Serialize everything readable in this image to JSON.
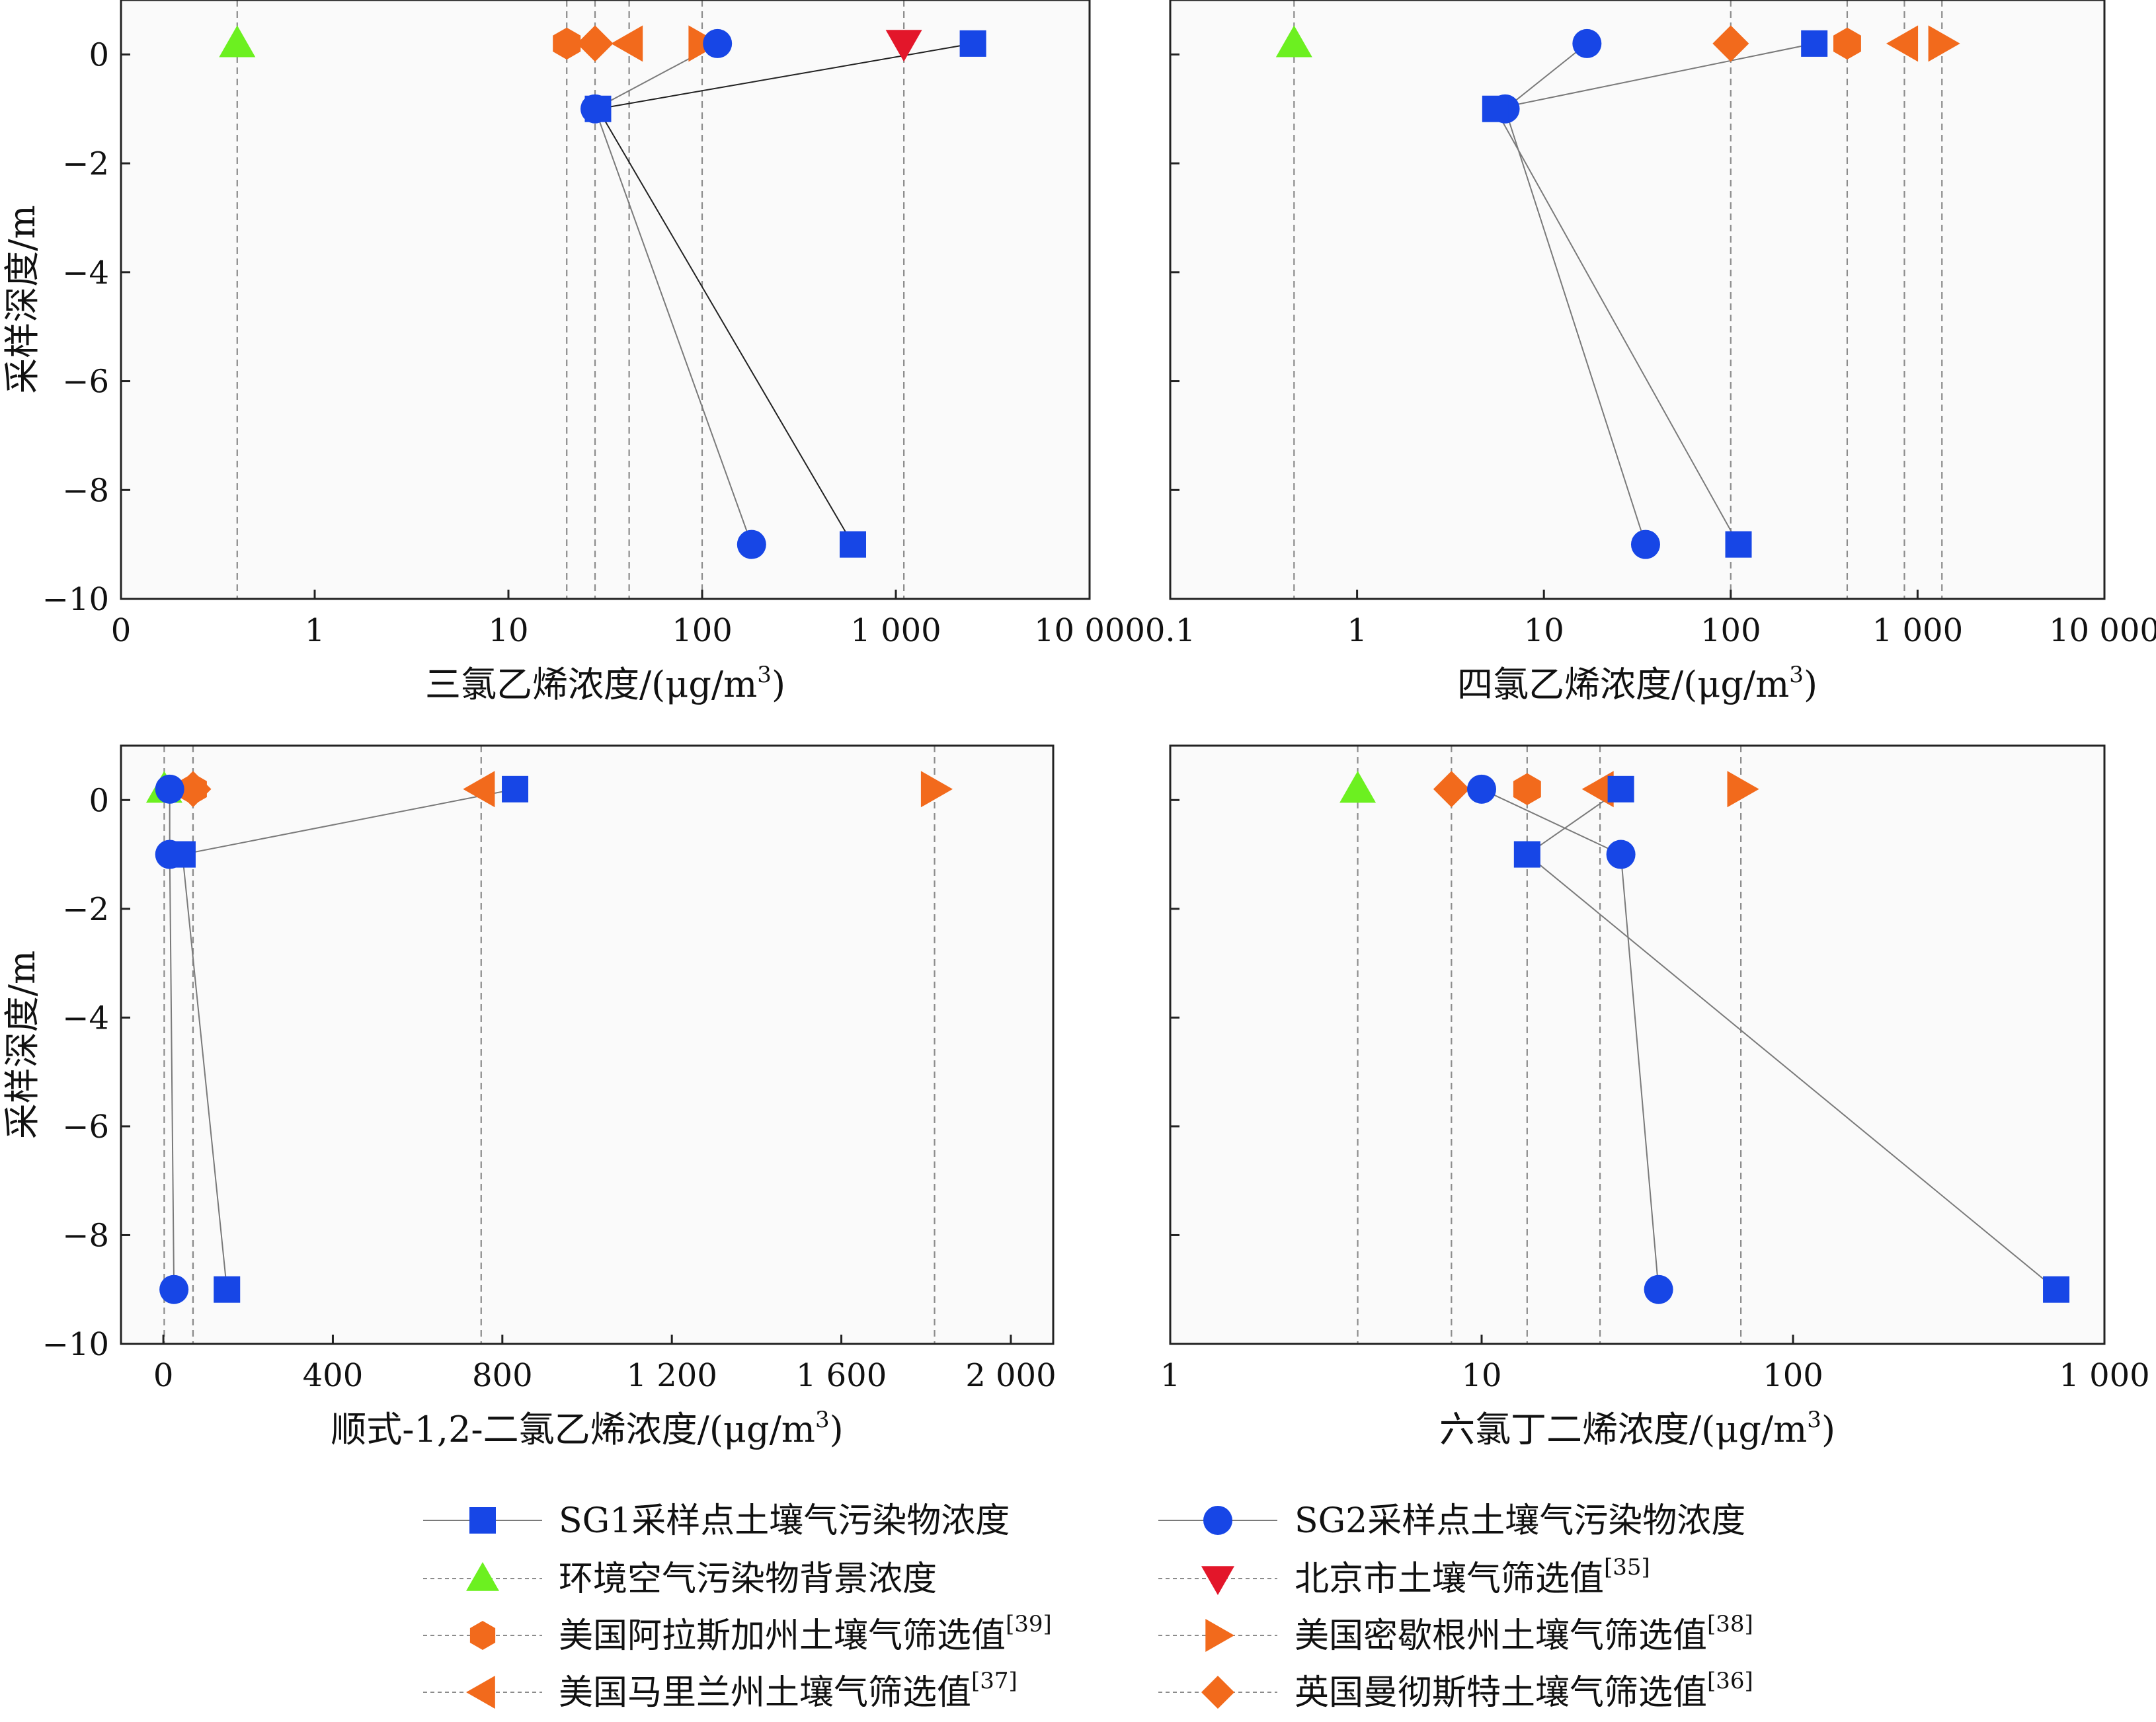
{
  "colors": {
    "plot_bg": "#fafafa",
    "blue": "#1746e6",
    "green": "#6cf020",
    "red": "#e3162a",
    "orange": "#f26a1c",
    "line_gray": "#7a7a7a",
    "ref_gray": "#8c8c8c"
  },
  "chart_data": [
    {
      "type": "scatter",
      "xscale": "symlog",
      "xlabel_main": "三氯乙烯浓度/(μg/m",
      "xlabel_sup": "3",
      "xlabel_end": ")",
      "ylabel": "采样深度/m",
      "xlim": [
        0,
        10000
      ],
      "ylim": [
        -10,
        1
      ],
      "xticks": [
        0,
        1,
        10,
        100,
        1000,
        10000
      ],
      "xticklabels": [
        "0",
        "1",
        "10",
        "100",
        "1 000",
        "10 000"
      ],
      "yticks": [
        0,
        -2,
        -4,
        -6,
        -8,
        -10
      ],
      "yticklabels": [
        "0",
        "−2",
        "−4",
        "−6",
        "−8",
        "−10"
      ],
      "sg1": {
        "x": [
          2500,
          29,
          600
        ],
        "y": [
          0.2,
          -1,
          -9
        ]
      },
      "sg2": {
        "x": [
          120,
          28,
          180
        ],
        "y": [
          0.2,
          -1,
          -9
        ]
      },
      "screening": [
        {
          "key": "background",
          "x": 0.6
        },
        {
          "key": "alaska",
          "x": 20
        },
        {
          "key": "uk",
          "x": 28
        },
        {
          "key": "maryland",
          "x": 42
        },
        {
          "key": "michigan",
          "x": 100
        },
        {
          "key": "beijing",
          "x": 1100
        }
      ]
    },
    {
      "type": "scatter",
      "xscale": "log",
      "xlabel_main": "四氯乙烯浓度/(μg/m",
      "xlabel_sup": "3",
      "xlabel_end": ")",
      "ylabel": "",
      "xlim": [
        0.1,
        10000
      ],
      "ylim": [
        -10,
        1
      ],
      "xticks": [
        0.1,
        1,
        10,
        100,
        1000,
        10000
      ],
      "xticklabels": [
        "0.1",
        "1",
        "10",
        "100",
        "1 000",
        "10 000"
      ],
      "yticks": [
        0,
        -2,
        -4,
        -6,
        -8,
        -10
      ],
      "yticklabels": [],
      "sg1": {
        "x": [
          280,
          5.5,
          110
        ],
        "y": [
          0.2,
          -1,
          -9
        ]
      },
      "sg2": {
        "x": [
          17,
          6.2,
          35
        ],
        "y": [
          0.2,
          -1,
          -9
        ]
      },
      "screening": [
        {
          "key": "background",
          "x": 0.46
        },
        {
          "key": "uk",
          "x": 100
        },
        {
          "key": "alaska",
          "x": 420
        },
        {
          "key": "maryland",
          "x": 850
        },
        {
          "key": "michigan",
          "x": 1350
        }
      ]
    },
    {
      "type": "scatter",
      "xscale": "linear",
      "xlabel_main": "顺式-1,2-二氯乙烯浓度/(μg/m",
      "xlabel_sup": "3",
      "xlabel_end": ")",
      "ylabel": "采样深度/m",
      "xlim": [
        -100,
        2100
      ],
      "ylim": [
        -10,
        1
      ],
      "xticks": [
        0,
        400,
        800,
        1200,
        1600,
        2000
      ],
      "xticklabels": [
        "0",
        "400",
        "800",
        "1 200",
        "1 600",
        "2 000"
      ],
      "yticks": [
        0,
        -2,
        -4,
        -6,
        -8,
        -10
      ],
      "yticklabels": [
        "0",
        "−2",
        "−4",
        "−6",
        "−8",
        "−10"
      ],
      "sg1": {
        "x": [
          830,
          45,
          150
        ],
        "y": [
          0.2,
          -1,
          -9
        ]
      },
      "sg2": {
        "x": [
          15,
          15,
          25
        ],
        "y": [
          0.2,
          -1,
          -9
        ]
      },
      "screening": [
        {
          "key": "background",
          "x": 2
        },
        {
          "key": "alaska",
          "x": 70
        },
        {
          "key": "uk",
          "x": 70
        },
        {
          "key": "maryland",
          "x": 750
        },
        {
          "key": "michigan",
          "x": 1820
        }
      ]
    },
    {
      "type": "scatter",
      "xscale": "log",
      "xlabel_main": "六氯丁二烯浓度/(μg/m",
      "xlabel_sup": "3",
      "xlabel_end": ")",
      "ylabel": "",
      "xlim": [
        1,
        1000
      ],
      "ylim": [
        -10,
        1
      ],
      "xticks": [
        1,
        10,
        100,
        1000
      ],
      "xticklabels": [
        "1",
        "10",
        "100",
        "1 000"
      ],
      "yticks": [
        0,
        -2,
        -4,
        -6,
        -8,
        -10
      ],
      "yticklabels": [],
      "sg1": {
        "x": [
          28,
          14,
          700
        ],
        "y": [
          0.2,
          -1,
          -9
        ]
      },
      "sg2": {
        "x": [
          10,
          28,
          37
        ],
        "y": [
          0.2,
          -1,
          -9
        ]
      },
      "screening": [
        {
          "key": "background",
          "x": 4.0
        },
        {
          "key": "uk",
          "x": 8.0
        },
        {
          "key": "alaska",
          "x": 14
        },
        {
          "key": "maryland",
          "x": 24
        },
        {
          "key": "michigan",
          "x": 68
        }
      ]
    }
  ],
  "legend": [
    {
      "key": "sg1",
      "label": "SG1采样点土壤气污染物浓度",
      "ref": ""
    },
    {
      "key": "sg2",
      "label": "SG2采样点土壤气污染物浓度",
      "ref": ""
    },
    {
      "key": "background",
      "label": "环境空气污染物背景浓度",
      "ref": ""
    },
    {
      "key": "beijing",
      "label": "北京市土壤气筛选值",
      "ref": "[35]"
    },
    {
      "key": "alaska",
      "label": "美国阿拉斯加州土壤气筛选值",
      "ref": "[39]"
    },
    {
      "key": "michigan",
      "label": "美国密歇根州土壤气筛选值",
      "ref": "[38]"
    },
    {
      "key": "maryland",
      "label": "美国马里兰州土壤气筛选值",
      "ref": "[37]"
    },
    {
      "key": "uk",
      "label": "英国曼彻斯特土壤气筛选值",
      "ref": "[36]"
    }
  ]
}
